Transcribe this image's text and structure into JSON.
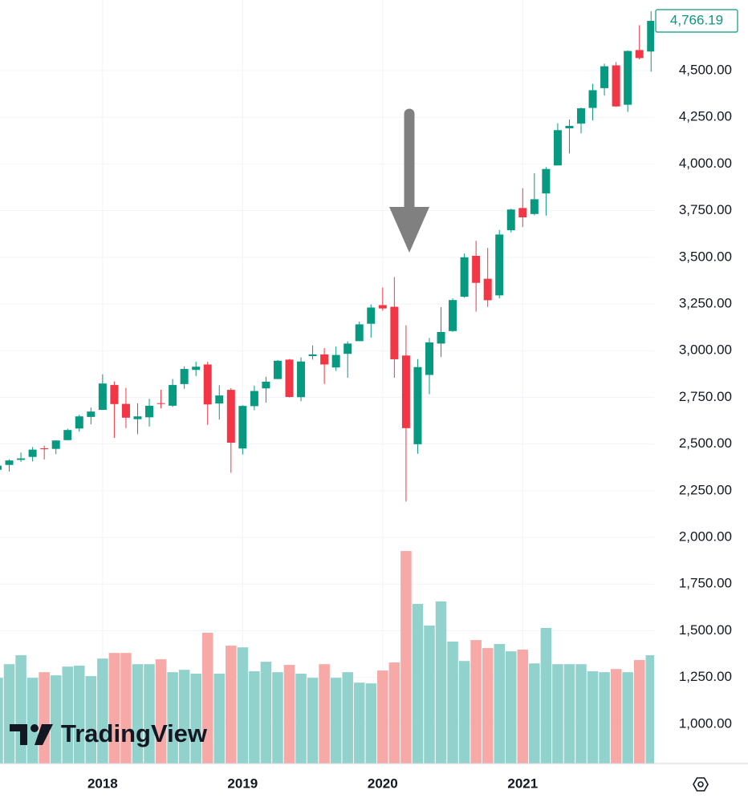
{
  "chart_data": {
    "type": "candlestick",
    "categories": [
      null,
      null,
      null,
      null,
      null,
      null,
      null,
      null,
      null,
      "2018",
      null,
      null,
      null,
      null,
      null,
      null,
      null,
      null,
      null,
      null,
      null,
      "2019",
      null,
      null,
      null,
      null,
      null,
      null,
      null,
      null,
      null,
      null,
      null,
      "2020",
      null,
      null,
      null,
      null,
      null,
      null,
      null,
      null,
      null,
      null,
      null,
      "2021",
      null,
      null,
      null,
      null,
      null,
      null,
      null,
      null,
      null,
      null,
      null
    ],
    "open": [
      2362,
      2388,
      2415,
      2431,
      2477,
      2474,
      2521,
      2583,
      2645,
      2683,
      2816,
      2715,
      2633,
      2643,
      2718.7,
      2705,
      2821,
      2897,
      2926,
      2717,
      2790,
      2476,
      2703,
      2798,
      2848,
      2952,
      2751,
      2971,
      2980,
      2910,
      2983,
      3051,
      3144,
      3244,
      3235,
      2974,
      2499,
      2870,
      3038,
      3105,
      3289,
      3508,
      3385,
      3296,
      3645,
      3764,
      3732,
      3842,
      3992,
      4191,
      4216,
      4300,
      4406,
      4528,
      4317,
      4610,
      4602
    ],
    "high": [
      2398,
      2418,
      2454,
      2484,
      2491,
      2519,
      2582,
      2657,
      2695,
      2873,
      2835,
      2801,
      2718,
      2742,
      2791,
      2848,
      2916,
      2941,
      2940,
      2815,
      2800,
      2708,
      2813,
      2860,
      2950,
      2955,
      2964,
      3028,
      3014,
      3022,
      3050,
      3156,
      3248,
      3338,
      3394,
      3136,
      2955,
      3068,
      3233,
      3280,
      3520,
      3588,
      3550,
      3646,
      3760,
      3870,
      3950,
      3983,
      4218,
      4238,
      4302,
      4429,
      4537,
      4546,
      4608,
      4743,
      4818
    ],
    "low": [
      2329,
      2353,
      2405,
      2407,
      2417,
      2446,
      2520,
      2566,
      2605,
      2682,
      2533,
      2585,
      2553,
      2594,
      2691,
      2698,
      2796,
      2864,
      2603,
      2631,
      2346,
      2444,
      2681,
      2722,
      2848,
      2750,
      2729,
      2952,
      2822,
      2891,
      2855,
      3051,
      3070,
      3214,
      2855,
      2192,
      2448,
      2767,
      2966,
      3101,
      3284,
      3209,
      3234,
      3280,
      3633,
      3662,
      3725,
      3723,
      3992,
      4056,
      4164,
      4233,
      4367,
      4306,
      4279,
      4560,
      4495
    ],
    "close": [
      2384,
      2412,
      2423,
      2470,
      2472,
      2519,
      2575,
      2648,
      2674,
      2824,
      2714,
      2641,
      2648,
      2705,
      2718.3,
      2816,
      2902,
      2914,
      2712,
      2760,
      2507,
      2704,
      2784,
      2834,
      2946,
      2752,
      2942,
      2980,
      2926,
      2977,
      3038,
      3141,
      3231,
      3226,
      2954,
      2585,
      2912,
      3044,
      3100,
      3271,
      3500,
      3363,
      3270,
      3622,
      3756,
      3714,
      3811,
      3973,
      4181,
      4204,
      4298,
      4395,
      4523,
      4308,
      4605,
      4567,
      4766.19
    ],
    "volume": [
      1248,
      1321,
      1369,
      1248,
      1278,
      1261,
      1308,
      1313,
      1257,
      1351,
      1381,
      1381,
      1321,
      1321,
      1347,
      1278,
      1291,
      1270,
      1489,
      1270,
      1420,
      1411,
      1283,
      1334,
      1278,
      1317,
      1270,
      1248,
      1321,
      1248,
      1278,
      1222,
      1218,
      1287,
      1330,
      1927,
      1644,
      1528,
      1657,
      1442,
      1338,
      1450,
      1407,
      1429,
      1390,
      1399,
      1325,
      1515,
      1321,
      1321,
      1321,
      1283,
      1278,
      1295,
      1278,
      1343,
      1369
    ],
    "last_label": "4,766.19",
    "up_color": "#089981",
    "down_color": "#f23645",
    "volume_up_color": "#92d2cc",
    "volume_down_color": "#f7a9a7",
    "ylim": [
      789,
      4878
    ],
    "yticks": [
      {
        "value": 1000,
        "label": "1,000.00"
      },
      {
        "value": 1250,
        "label": "1,250.00"
      },
      {
        "value": 1500,
        "label": "1,500.00"
      },
      {
        "value": 1750,
        "label": "1,750.00"
      },
      {
        "value": 2000,
        "label": "2,000.00"
      },
      {
        "value": 2250,
        "label": "2,250.00"
      },
      {
        "value": 2500,
        "label": "2,500.00"
      },
      {
        "value": 2750,
        "label": "2,750.00"
      },
      {
        "value": 3000,
        "label": "3,000.00"
      },
      {
        "value": 3250,
        "label": "3,250.00"
      },
      {
        "value": 3500,
        "label": "3,500.00"
      },
      {
        "value": 3750,
        "label": "3,750.00"
      },
      {
        "value": 4000,
        "label": "4,000.00"
      },
      {
        "value": 4250,
        "label": "4,250.00"
      },
      {
        "value": 4500,
        "label": "4,500.00"
      }
    ],
    "grid": true,
    "watermark": "TradingView"
  }
}
